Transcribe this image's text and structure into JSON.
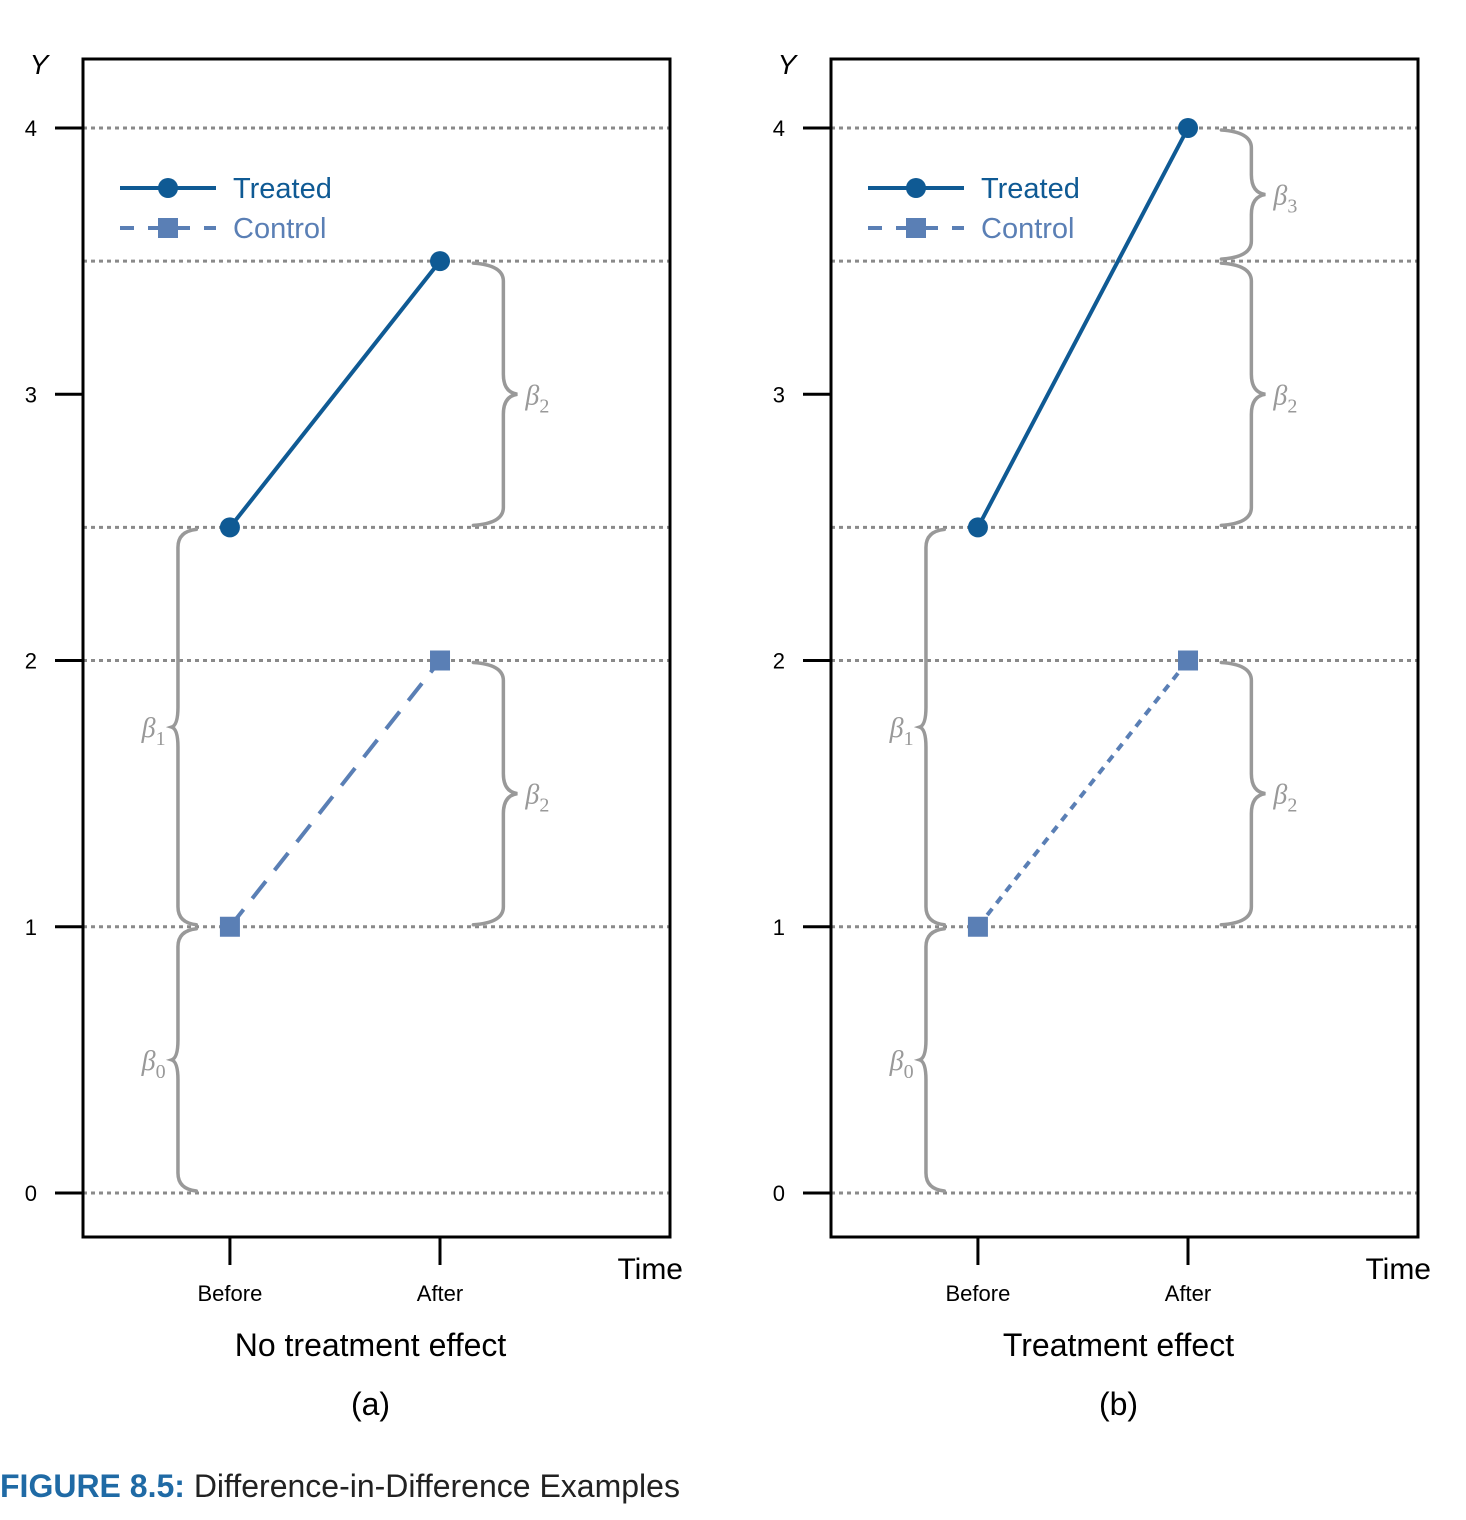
{
  "colors": {
    "treated": "#0f5a94",
    "control": "#5a7fb5",
    "grid": "#8a8a8a",
    "brace": "#999999",
    "caption_label": "#1f6aa5"
  },
  "caption": {
    "label": "FIGURE 8.5:",
    "text": "Difference-in-Difference Examples"
  },
  "chart_data": [
    {
      "type": "line",
      "tag": "(a)",
      "subtitle": "No treatment effect",
      "ylabel": "Y",
      "xlabel": "Time",
      "categories": [
        "Before",
        "After"
      ],
      "ylim": [
        -0.16,
        4.26
      ],
      "yticks": [
        "0",
        "1",
        "2",
        "3",
        "4"
      ],
      "gridlines": [
        0,
        1,
        2,
        2.5,
        3.5,
        4
      ],
      "grid": true,
      "legend_position": "top-left",
      "series": [
        {
          "name": "Treated",
          "values": [
            2.5,
            3.5
          ],
          "marker": "circle",
          "line": "solid",
          "color": "#0f5a94"
        },
        {
          "name": "Control",
          "values": [
            1,
            2
          ],
          "marker": "square",
          "line": "dashed",
          "color": "#5a7fb5"
        }
      ],
      "annotations": [
        {
          "label": "β",
          "sub": "0",
          "from": 0,
          "to": 1,
          "side": "left"
        },
        {
          "label": "β",
          "sub": "1",
          "from": 1,
          "to": 2.5,
          "side": "left"
        },
        {
          "label": "β",
          "sub": "2",
          "from": 2.5,
          "to": 3.5,
          "side": "right"
        },
        {
          "label": "β",
          "sub": "2",
          "from": 1,
          "to": 2,
          "side": "right"
        }
      ]
    },
    {
      "type": "line",
      "tag": "(b)",
      "subtitle": "Treatment effect",
      "ylabel": "Y",
      "xlabel": "Time",
      "categories": [
        "Before",
        "After"
      ],
      "ylim": [
        -0.16,
        4.26
      ],
      "yticks": [
        "0",
        "1",
        "2",
        "3",
        "4"
      ],
      "gridlines": [
        0,
        1,
        2,
        2.5,
        3.5,
        4
      ],
      "grid": true,
      "legend_position": "top-left",
      "series": [
        {
          "name": "Treated",
          "values": [
            2.5,
            4
          ],
          "marker": "circle",
          "line": "solid",
          "color": "#0f5a94"
        },
        {
          "name": "Control",
          "values": [
            1,
            2
          ],
          "marker": "square",
          "line": "dotted",
          "color": "#5a7fb5"
        }
      ],
      "annotations": [
        {
          "label": "β",
          "sub": "0",
          "from": 0,
          "to": 1,
          "side": "left"
        },
        {
          "label": "β",
          "sub": "1",
          "from": 1,
          "to": 2.5,
          "side": "left"
        },
        {
          "label": "β",
          "sub": "3",
          "from": 3.5,
          "to": 4,
          "side": "right"
        },
        {
          "label": "β",
          "sub": "2",
          "from": 2.5,
          "to": 3.5,
          "side": "right"
        },
        {
          "label": "β",
          "sub": "2",
          "from": 1,
          "to": 2,
          "side": "right"
        }
      ]
    }
  ]
}
